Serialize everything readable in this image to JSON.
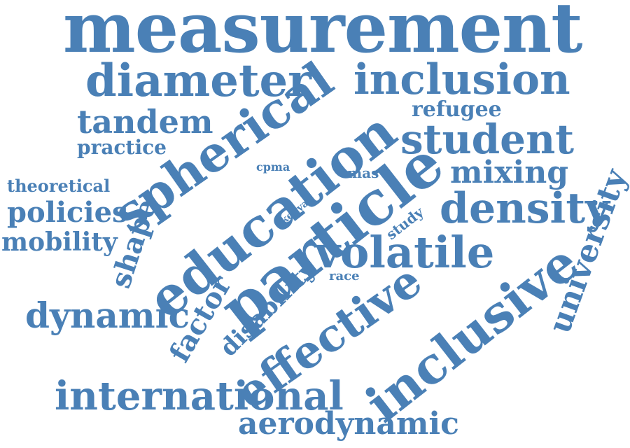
{
  "colors": {
    "word": "#4a80b6",
    "background": "#ffffff"
  },
  "words": {
    "measurement": "measurement",
    "diameter": "diameter",
    "inclusion": "inclusion",
    "tandem": "tandem",
    "refugee": "refugee",
    "practice": "practice",
    "spherical": "spherical",
    "student": "student",
    "cpma": "cpma",
    "mas": "mas",
    "mixing": "mixing",
    "theoretical": "theoretical",
    "education": "education",
    "particle": "particle",
    "university": "university",
    "policies": "policies",
    "shape": "shape",
    "kenya": "kenya",
    "density": "density",
    "mobility": "mobility",
    "study": "study",
    "volatile": "volatile",
    "factor": "factor",
    "race": "race",
    "disability": "disability",
    "dynamic": "dynamic",
    "effective": "effective",
    "inclusive": "inclusive",
    "international": "international",
    "aerodynamic": "aerodynamic"
  }
}
